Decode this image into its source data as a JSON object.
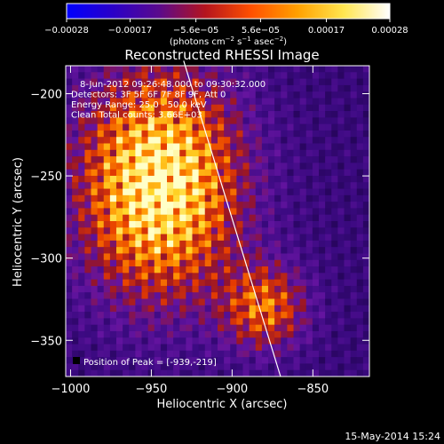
{
  "chart_data": {
    "type": "heatmap",
    "title": "Reconstructed RHESSI Image",
    "xlabel": "Heliocentric X (arcsec)",
    "ylabel": "Heliocentric Y (arcsec)",
    "xlim": [
      -1003,
      -815
    ],
    "ylim": [
      -372,
      -183
    ],
    "x_ticks": [
      {
        "value": -1000,
        "label": "−1000"
      },
      {
        "value": -950,
        "label": "−950"
      },
      {
        "value": -900,
        "label": "−900"
      },
      {
        "value": -850,
        "label": "−850"
      }
    ],
    "y_ticks": [
      {
        "value": -200,
        "label": "−200"
      },
      {
        "value": -250,
        "label": "−250"
      },
      {
        "value": -300,
        "label": "−300"
      },
      {
        "value": -350,
        "label": "−350"
      }
    ],
    "colorbar": {
      "range": [
        -0.00028,
        0.00028
      ],
      "ticks": [
        {
          "value": -0.00028,
          "label": "−0.00028"
        },
        {
          "value": -0.00017,
          "label": "−0.00017"
        },
        {
          "value": -5.6e-05,
          "label": "−5.6e−05"
        },
        {
          "value": 5.6e-05,
          "label": "5.6e−05"
        },
        {
          "value": 0.00017,
          "label": "0.00017"
        },
        {
          "value": 0.00028,
          "label": "0.00028"
        }
      ],
      "unit_prefix": "(photons cm",
      "unit_exp1": "−2",
      "unit_mid1": " s",
      "unit_exp2": "−1",
      "unit_mid2": " asec",
      "unit_exp3": "−2",
      "unit_suffix": ")",
      "colors": [
        "#0000ff",
        "#2a00c8",
        "#5a0a8c",
        "#b4141e",
        "#ff5000",
        "#ffa000",
        "#ffe650",
        "#ffffff"
      ]
    },
    "info_lines": [
      "8-Jun-2012 09:26:48.000 to 09:30:32.000",
      "Detectors: 3F 5F 6F 7F 8F 9F, Att 0",
      "Energy Range: 25.0 - 50.0 keV",
      "Clean     Total counts: 3.66E+03"
    ],
    "peak_label": "Position of Peak = [-939,-219]",
    "peak": [
      -939,
      -219
    ],
    "limb_line": [
      [
        -930,
        -180
      ],
      [
        -870,
        -372
      ]
    ],
    "bright_region": {
      "center": [
        -945,
        -255
      ],
      "radius_x": 55,
      "radius_y": 75
    },
    "secondary_region": {
      "center": [
        -880,
        -330
      ],
      "radius": 25
    }
  },
  "footer_timestamp": "15-May-2014 15:24"
}
